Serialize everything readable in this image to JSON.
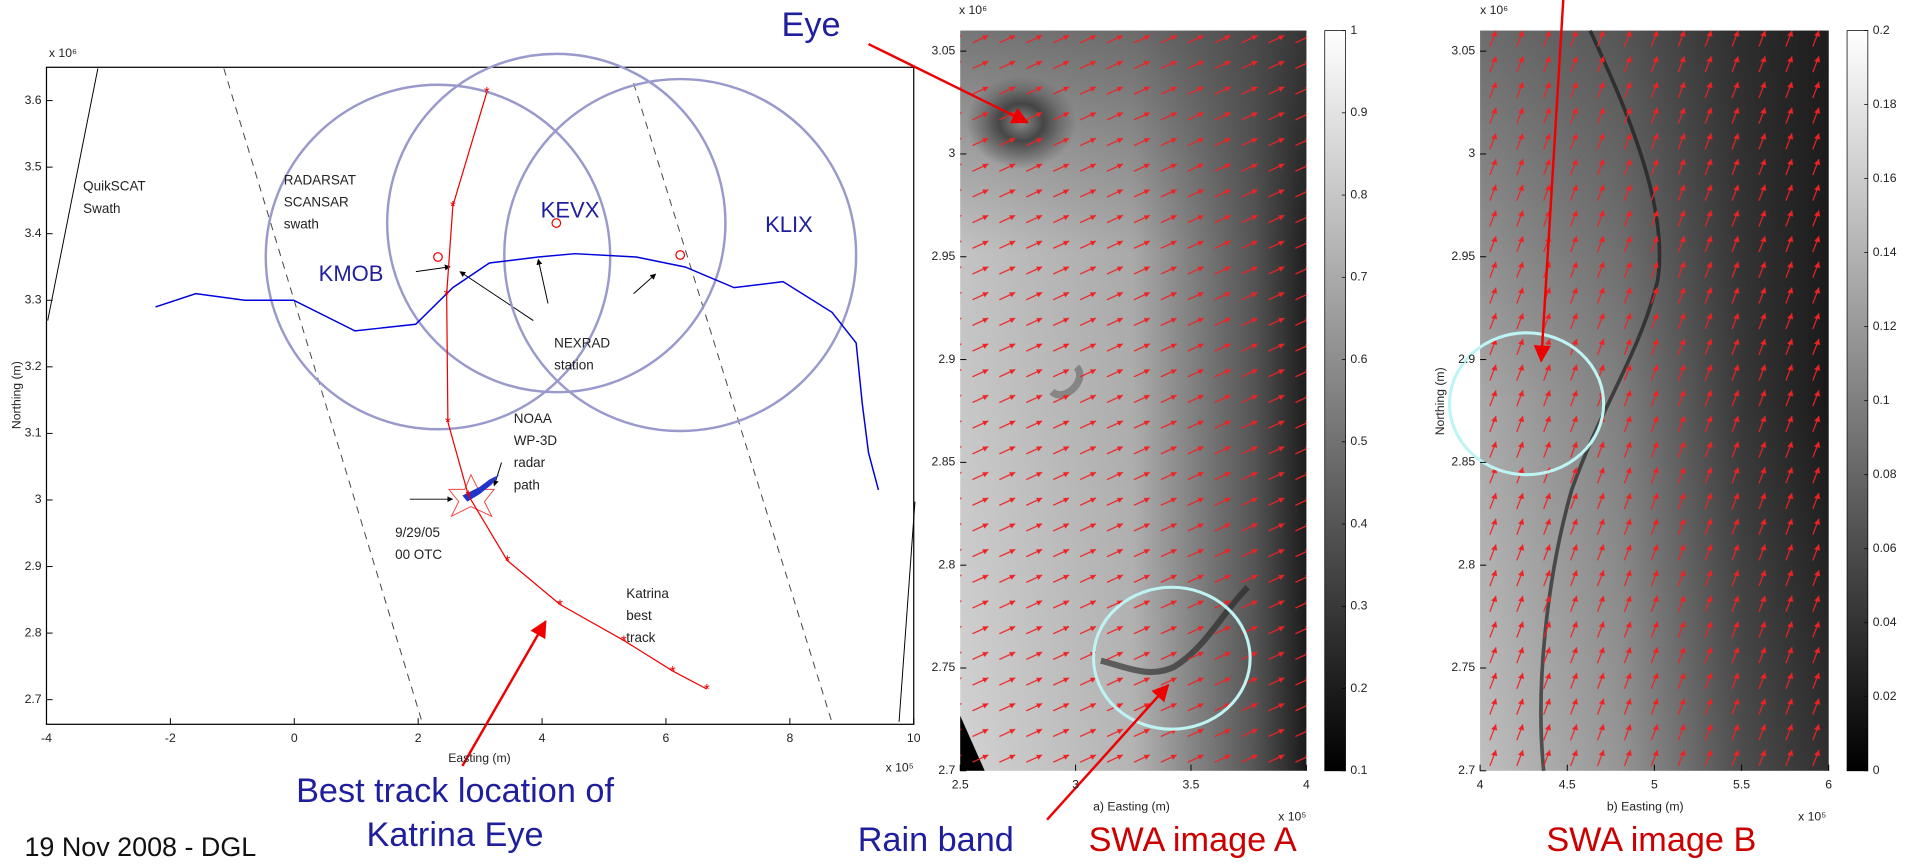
{
  "footer": "19 Nov 2008 - DGL",
  "annotations": {
    "eye": "Eye",
    "best_track": [
      "Best track location of",
      "Katrina Eye"
    ],
    "rain_band": "Rain band"
  },
  "chart_data": [
    {
      "type": "map",
      "xlim": [
        -4,
        10
      ],
      "ylim": [
        2.663,
        3.65
      ],
      "xticks": [
        -4,
        -2,
        0,
        2,
        4,
        6,
        8,
        10
      ],
      "yticks": [
        2.7,
        2.8,
        2.9,
        3,
        3.1,
        3.2,
        3.3,
        3.4,
        3.5,
        3.6
      ],
      "x_exponent": "x 10⁵",
      "y_exponent": "x 10⁶",
      "xlabel": "Easting (m)",
      "ylabel": "Northing (m)",
      "stations": [
        {
          "name": "KMOB",
          "x": 2.32,
          "y": 3.365,
          "r": 2.78
        },
        {
          "name": "KEVX",
          "x": 4.23,
          "y": 3.416,
          "r": 2.73
        },
        {
          "name": "KLIX",
          "x": 6.23,
          "y": 3.368,
          "r": 2.84
        }
      ],
      "station_color": "#9999cc",
      "tracks": [
        {
          "color": "#0000dd",
          "x": [
            -2.24,
            -1.59,
            -0.8,
            -0.01,
            0.98,
            1.96,
            2.56,
            3.15,
            3.94,
            4.53,
            5.52,
            6.31,
            7.1,
            7.89,
            8.68,
            9.07,
            9.17,
            9.27,
            9.43
          ],
          "y": [
            3.29,
            3.31,
            3.3,
            3.3,
            3.254,
            3.264,
            3.319,
            3.356,
            3.365,
            3.37,
            3.365,
            3.35,
            3.319,
            3.328,
            3.282,
            3.236,
            3.144,
            3.071,
            3.015
          ]
        },
        {
          "color": "#ee0000",
          "x": [
            3.11,
            2.56,
            2.46,
            2.48,
            2.81,
            3.44,
            4.29,
            5.32,
            6.11,
            6.66
          ],
          "y": [
            3.613,
            3.442,
            3.309,
            3.117,
            3.007,
            2.909,
            2.843,
            2.789,
            2.743,
            2.716
          ]
        }
      ],
      "notes": [
        [
          "QuikSCAT",
          "Swath"
        ],
        [
          "RADARSAT",
          "SCANSAR",
          "swath"
        ],
        [
          "NEXRAD",
          "station"
        ],
        [
          "NOAA",
          "WP-3D",
          "radar",
          "path"
        ],
        [
          "9/29/05",
          "00 OTC"
        ],
        [
          "Katrina",
          "best",
          "track"
        ]
      ]
    },
    {
      "type": "image",
      "title": "SWA image A",
      "xlim": [
        2.5,
        4
      ],
      "ylim": [
        2.7,
        3.06
      ],
      "xticks": [
        2.5,
        3,
        3.5,
        4
      ],
      "yticks": [
        2.7,
        2.75,
        2.8,
        2.85,
        2.9,
        2.95,
        3,
        3.05
      ],
      "x_exponent": "x 10⁵",
      "y_exponent": "x 10⁶",
      "xlabel": "a)  Easting (m)",
      "colorbar_lim": [
        0.1,
        1
      ],
      "colorbar_ticks": [
        0.1,
        0.2,
        0.3,
        0.4,
        0.5,
        0.6,
        0.7,
        0.8,
        0.9,
        1
      ]
    },
    {
      "type": "image",
      "title": "SWA image B",
      "xlim": [
        4,
        6
      ],
      "ylim": [
        2.7,
        3.06
      ],
      "xticks": [
        4,
        4.5,
        5,
        5.5,
        6
      ],
      "yticks": [
        2.7,
        2.75,
        2.8,
        2.85,
        2.9,
        2.95,
        3,
        3.05
      ],
      "x_exponent": "x 10⁵",
      "y_exponent": "x 10⁶",
      "xlabel": "b)  Easting (m)",
      "ylabel": "Northing (m)",
      "colorbar_lim": [
        0,
        0.2
      ],
      "colorbar_ticks": [
        0,
        0.02,
        0.04,
        0.06,
        0.08,
        0.1,
        0.12,
        0.14,
        0.16,
        0.18,
        0.2
      ]
    }
  ]
}
